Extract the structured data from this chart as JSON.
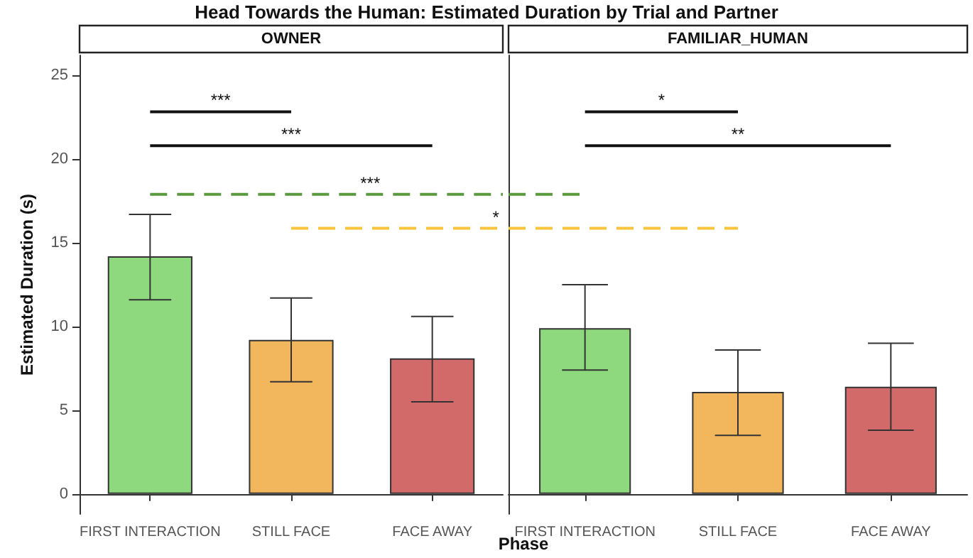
{
  "chart_data": [
    {
      "type": "bar",
      "title": "Head Towards the Human: Estimated Duration by Trial and Partner",
      "subtitle": "OWNER",
      "xlabel": "Phase",
      "ylabel": "Estimated Duration (s)",
      "categories": [
        "FIRST INTERACTION",
        "STILL FACE",
        "FACE AWAY"
      ],
      "values": [
        14.2,
        9.2,
        8.1
      ],
      "colors": [
        "#8ed97d",
        "#f2b65c",
        "#d16a68"
      ],
      "errors": [
        [
          11.6,
          16.7
        ],
        [
          6.7,
          11.7
        ],
        [
          5.5,
          10.6
        ]
      ],
      "ylim": [
        -1.2,
        26.2
      ],
      "yticks": [
        0,
        5,
        10,
        15,
        20,
        25
      ],
      "annotations": [
        "***",
        "***",
        "***",
        "*"
      ]
    },
    {
      "type": "bar",
      "subtitle": "FAMILIAR_HUMAN",
      "categories": [
        "FIRST INTERACTION",
        "STILL FACE",
        "FACE AWAY"
      ],
      "values": [
        9.9,
        6.1,
        6.4
      ],
      "colors": [
        "#8ed97d",
        "#f2b65c",
        "#d16a68"
      ],
      "errors": [
        [
          7.4,
          12.5
        ],
        [
          3.5,
          8.6
        ],
        [
          3.8,
          9.0
        ]
      ],
      "ylim": [
        -1.2,
        26.2
      ],
      "yticks": [
        0,
        5,
        10,
        15,
        20,
        25
      ],
      "tick_labels": "x",
      "annotations": [
        "*",
        "**"
      ]
    }
  ]
}
